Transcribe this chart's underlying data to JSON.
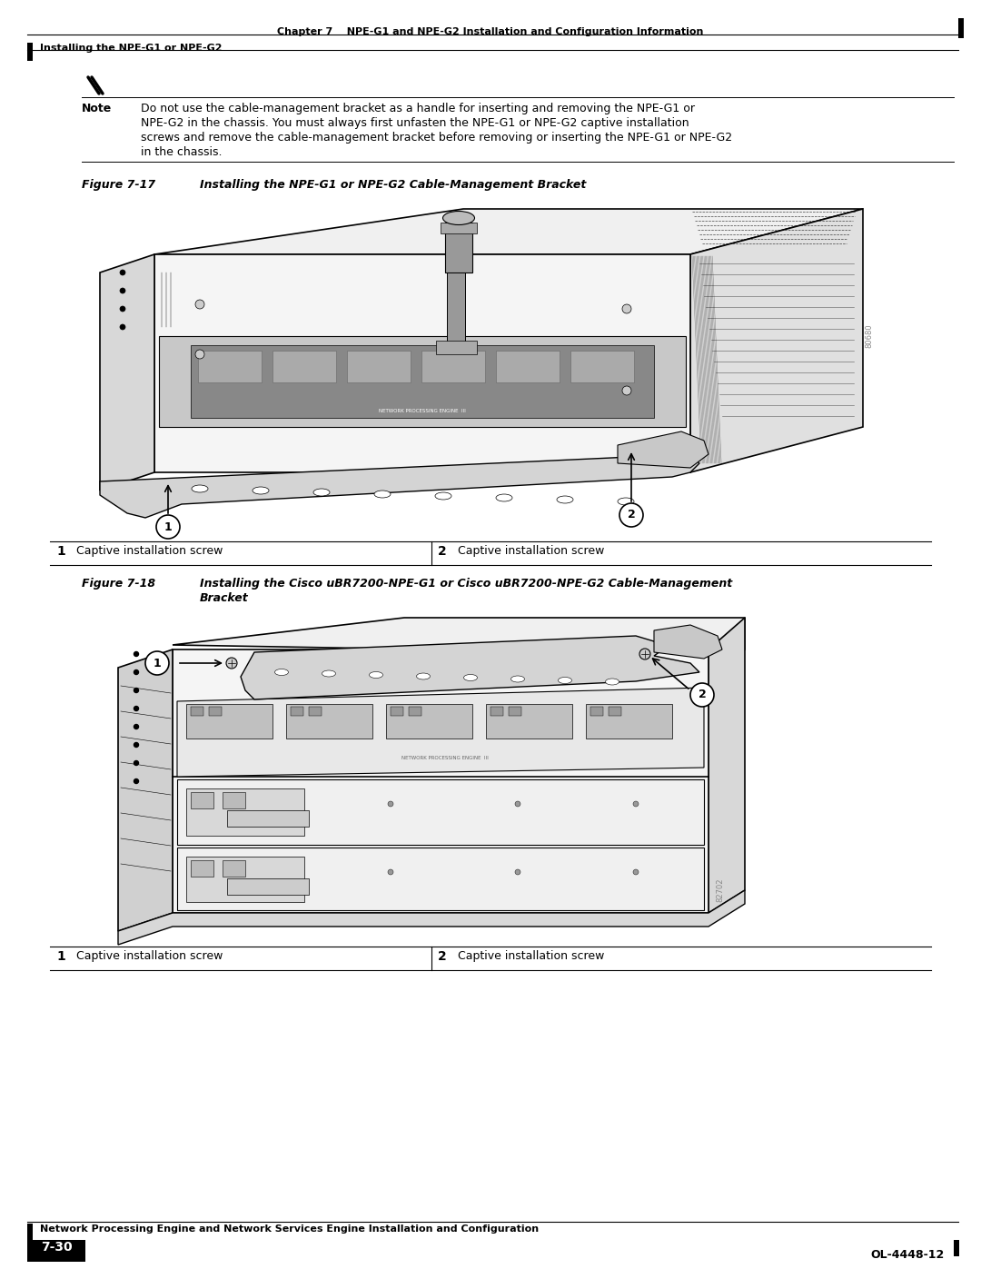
{
  "page_bg": "#ffffff",
  "header_top_text_left": "Chapter 7",
  "header_top_text_right": "NPE-G1 and NPE-G2 Installation and Configuration Information",
  "header_bottom_text": "Installing the NPE-G1 or NPE-G2",
  "note_label": "Note",
  "note_line1": "Do not use the cable-management bracket as a handle for inserting and removing the NPE-G1 or",
  "note_line2": "NPE-G2 in the chassis. You must always first unfasten the NPE-G1 or NPE-G2 captive installation",
  "note_line3": "screws and remove the cable-management bracket before removing or inserting the NPE-G1 or NPE-G2",
  "note_line4": "in the chassis.",
  "fig1_label": "Figure 7-17",
  "fig1_caption": "Installing the NPE-G1 or NPE-G2 Cable-Management Bracket",
  "fig2_label": "Figure 7-18",
  "fig2_caption_line1": "Installing the Cisco uBR7200-NPE-G1 or Cisco uBR7200-NPE-G2 Cable-Management",
  "fig2_caption_line2": "Bracket",
  "table_col1_num": "1",
  "table_col1_text": "Captive installation screw",
  "table_col2_num": "2",
  "table_col2_text": "Captive installation screw",
  "watermark1": "80680",
  "watermark2": "82702",
  "footer_text": "Network Processing Engine and Network Services Engine Installation and Configuration",
  "footer_page": "7-30",
  "footer_doc": "OL-4448-12",
  "line_color": "#000000",
  "body_color": "#e8e8e8",
  "dark_color": "#b0b0b0",
  "shadow_color": "#c0c0c0"
}
